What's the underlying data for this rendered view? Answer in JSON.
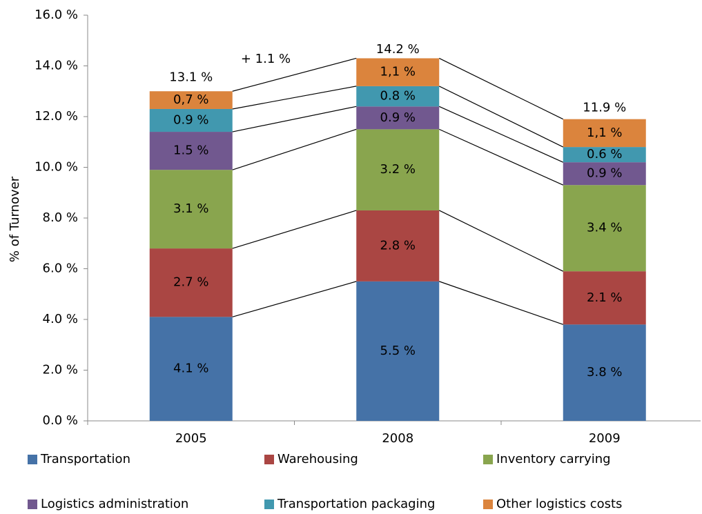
{
  "chart_data": {
    "type": "stacked_bar",
    "ylabel": "% of Turnover",
    "categories": [
      "2005",
      "2008",
      "2009"
    ],
    "series": [
      {
        "name": "Transportation",
        "color": "#4572a7",
        "values": [
          4.1,
          5.5,
          3.8
        ],
        "value_labels": [
          "4.1 %",
          "5.5 %",
          "3.8 %"
        ]
      },
      {
        "name": "Warehousing",
        "color": "#aa4643",
        "values": [
          2.7,
          2.8,
          2.1
        ],
        "value_labels": [
          "2.7 %",
          "2.8 %",
          "2.1 %"
        ]
      },
      {
        "name": "Inventory carrying",
        "color": "#89a54e",
        "values": [
          3.1,
          3.2,
          3.4
        ],
        "value_labels": [
          "3.1 %",
          "3.2 %",
          "3.4 %"
        ]
      },
      {
        "name": "Logistics administration",
        "color": "#71588f",
        "values": [
          1.5,
          0.9,
          0.9
        ],
        "value_labels": [
          "1.5 %",
          "0.9 %",
          "0.9 %"
        ]
      },
      {
        "name": "Transportation packaging",
        "color": "#4198af",
        "values": [
          0.9,
          0.8,
          0.6
        ],
        "value_labels": [
          "0.9 %",
          "0.8 %",
          "0.6 %"
        ]
      },
      {
        "name": "Other logistics costs",
        "color": "#db843d",
        "values": [
          0.7,
          1.1,
          1.1
        ],
        "value_labels": [
          "0,7 %",
          "1,1 %",
          "1,1 %"
        ]
      }
    ],
    "totals": [
      13.1,
      14.2,
      11.9
    ],
    "total_labels": [
      "13.1 %",
      "14.2 %",
      "11.9 %"
    ],
    "annotation": "+ 1.1 %",
    "ylim": [
      0,
      16
    ],
    "yticks": [
      {
        "value": 0,
        "label": "0.0 %"
      },
      {
        "value": 2,
        "label": "2.0 %"
      },
      {
        "value": 4,
        "label": "4.0 %"
      },
      {
        "value": 6,
        "label": "6.0 %"
      },
      {
        "value": 8,
        "label": "8.0 %"
      },
      {
        "value": 10,
        "label": "10.0 %"
      },
      {
        "value": 12,
        "label": "12.0 %"
      },
      {
        "value": 14,
        "label": "14.0 %"
      },
      {
        "value": 16,
        "label": "16.0 %"
      }
    ],
    "legend": "bottom"
  }
}
